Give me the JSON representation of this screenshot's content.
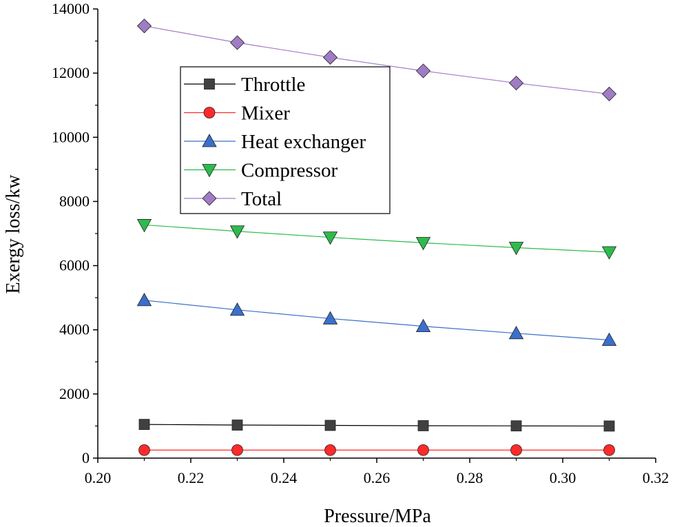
{
  "chart_data": {
    "type": "line",
    "title": "",
    "xlabel": "Pressure/MPa",
    "ylabel": "Exergy loss/kw",
    "xlim": [
      0.2,
      0.32
    ],
    "ylim": [
      0,
      14000
    ],
    "xticks": [
      "0.20",
      "0.22",
      "0.24",
      "0.26",
      "0.28",
      "0.30",
      "0.32"
    ],
    "yticks": [
      "0",
      "2000",
      "4000",
      "6000",
      "8000",
      "10000",
      "12000",
      "14000"
    ],
    "legend_position": "upper-left-center",
    "grid": false,
    "x": [
      0.21,
      0.23,
      0.25,
      0.27,
      0.29,
      0.31
    ],
    "series": [
      {
        "name": "Throttle",
        "marker": "square",
        "color": "#404040",
        "line_color": "#000000",
        "values": [
          1050,
          1030,
          1020,
          1010,
          1005,
          1000
        ]
      },
      {
        "name": "Mixer",
        "marker": "circle",
        "color": "#ff2a2a",
        "line_color": "#ff2a2a",
        "values": [
          250,
          250,
          250,
          250,
          250,
          250
        ]
      },
      {
        "name": "Heat exchanger",
        "marker": "triangle-up",
        "color": "#3b6fcc",
        "line_color": "#3b6fcc",
        "values": [
          4920,
          4620,
          4350,
          4110,
          3890,
          3680
        ]
      },
      {
        "name": "Compressor",
        "marker": "triangle-down",
        "color": "#2dbb4d",
        "line_color": "#2dbb4d",
        "values": [
          7270,
          7070,
          6880,
          6710,
          6560,
          6420
        ]
      },
      {
        "name": "Total",
        "marker": "diamond",
        "color": "#a07cc5",
        "line_color": "#a07cc5",
        "values": [
          13470,
          12950,
          12490,
          12070,
          11690,
          11350
        ]
      }
    ]
  }
}
